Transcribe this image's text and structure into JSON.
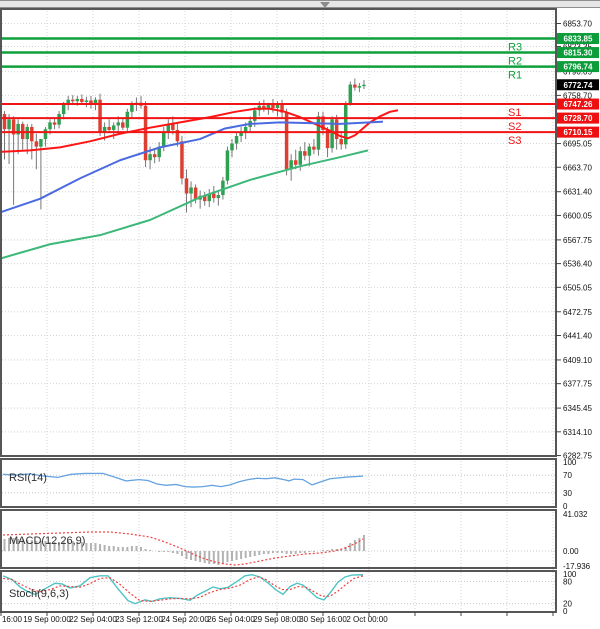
{
  "chart_data": {
    "type": "candlestick",
    "timeframe_hint": "4h bars",
    "price_axis_ticks": [
      "6853.70",
      "6823.35",
      "6790.05",
      "6758.70",
      "6695.05",
      "6663.70",
      "6631.40",
      "6600.05",
      "6567.75",
      "6536.40",
      "6505.05",
      "6472.75",
      "6441.40",
      "6409.10",
      "6377.75",
      "6345.45",
      "6314.10",
      "6282.75"
    ],
    "time_axis_labels": [
      "16:00",
      "19 Sep 00:00",
      "22 Sep 04:00",
      "23 Sep 12:00",
      "24 Sep 20:00",
      "26 Sep 04:00",
      "29 Sep 08:00",
      "30 Sep 16:00",
      "2 Oct 00:00"
    ],
    "levels": {
      "resistance": [
        {
          "name": "R3",
          "price": "6833.85"
        },
        {
          "name": "R2",
          "price": "6815.30"
        },
        {
          "name": "R1",
          "price": "6796.74"
        }
      ],
      "support": [
        {
          "name": "S1",
          "price": "6747.26"
        },
        {
          "name": "S2",
          "price": "6728.70"
        },
        {
          "name": "S3",
          "price": "6710.15"
        }
      ],
      "current_price": "6772.74"
    },
    "candles_ohlc": [
      [
        6734,
        6738,
        6674,
        6714
      ],
      [
        6714,
        6734,
        6668,
        6727
      ],
      [
        6727,
        6731,
        6614,
        6707
      ],
      [
        6707,
        6727,
        6681,
        6721
      ],
      [
        6721,
        6724,
        6687,
        6701
      ],
      [
        6701,
        6721,
        6681,
        6717
      ],
      [
        6717,
        6721,
        6674,
        6698
      ],
      [
        6698,
        6708,
        6661,
        6691
      ],
      [
        6691,
        6701,
        6608,
        6701
      ],
      [
        6701,
        6717,
        6691,
        6714
      ],
      [
        6714,
        6727,
        6707,
        6723
      ],
      [
        6723,
        6730,
        6714,
        6720
      ],
      [
        6720,
        6738,
        6715,
        6734
      ],
      [
        6734,
        6750,
        6727,
        6746
      ],
      [
        6746,
        6758,
        6739,
        6753
      ],
      [
        6753,
        6759,
        6746,
        6751
      ],
      [
        6751,
        6758,
        6745,
        6754
      ],
      [
        6754,
        6760,
        6747,
        6750
      ],
      [
        6750,
        6757,
        6743,
        6752
      ],
      [
        6752,
        6758,
        6741,
        6747
      ],
      [
        6747,
        6756,
        6739,
        6753
      ],
      [
        6753,
        6761,
        6705,
        6709
      ],
      [
        6709,
        6723,
        6699,
        6717
      ],
      [
        6717,
        6727,
        6709,
        6713
      ],
      [
        6713,
        6723,
        6701,
        6719
      ],
      [
        6719,
        6731,
        6711,
        6723
      ],
      [
        6723,
        6729,
        6713,
        6716
      ],
      [
        6716,
        6741,
        6711,
        6737
      ],
      [
        6737,
        6751,
        6729,
        6746
      ],
      [
        6746,
        6756,
        6738,
        6749
      ],
      [
        6749,
        6758,
        6741,
        6745
      ],
      [
        6745,
        6751,
        6664,
        6673
      ],
      [
        6673,
        6691,
        6661,
        6681
      ],
      [
        6681,
        6689,
        6669,
        6677
      ],
      [
        6677,
        6697,
        6671,
        6691
      ],
      [
        6691,
        6717,
        6685,
        6711
      ],
      [
        6711,
        6727,
        6701,
        6721
      ],
      [
        6721,
        6731,
        6707,
        6713
      ],
      [
        6713,
        6723,
        6691,
        6698
      ],
      [
        6698,
        6705,
        6641,
        6649
      ],
      [
        6649,
        6661,
        6604,
        6629
      ],
      [
        6629,
        6645,
        6611,
        6637
      ],
      [
        6637,
        6641,
        6616,
        6621
      ],
      [
        6621,
        6633,
        6609,
        6626
      ],
      [
        6626,
        6631,
        6613,
        6619
      ],
      [
        6619,
        6635,
        6611,
        6629
      ],
      [
        6629,
        6639,
        6617,
        6623
      ],
      [
        6623,
        6633,
        6613,
        6627
      ],
      [
        6627,
        6651,
        6621,
        6646
      ],
      [
        6646,
        6691,
        6641,
        6686
      ],
      [
        6686,
        6701,
        6677,
        6695
      ],
      [
        6695,
        6711,
        6687,
        6705
      ],
      [
        6705,
        6717,
        6697,
        6711
      ],
      [
        6711,
        6723,
        6701,
        6717
      ],
      [
        6717,
        6731,
        6709,
        6725
      ],
      [
        6725,
        6743,
        6717,
        6739
      ],
      [
        6739,
        6751,
        6731,
        6745
      ],
      [
        6745,
        6753,
        6737,
        6741
      ],
      [
        6741,
        6749,
        6733,
        6746
      ],
      [
        6746,
        6754,
        6736,
        6742
      ],
      [
        6742,
        6751,
        6731,
        6747
      ],
      [
        6747,
        6753,
        6729,
        6736
      ],
      [
        6736,
        6741,
        6653,
        6661
      ],
      [
        6661,
        6681,
        6646,
        6673
      ],
      [
        6673,
        6687,
        6661,
        6667
      ],
      [
        6667,
        6691,
        6659,
        6685
      ],
      [
        6685,
        6697,
        6673,
        6679
      ],
      [
        6679,
        6695,
        6665,
        6691
      ],
      [
        6691,
        6701,
        6681,
        6687
      ],
      [
        6687,
        6737,
        6679,
        6731
      ],
      [
        6731,
        6737,
        6706,
        6713
      ],
      [
        6713,
        6717,
        6677,
        6689
      ],
      [
        6689,
        6731,
        6683,
        6727
      ],
      [
        6727,
        6733,
        6687,
        6701
      ],
      [
        6701,
        6711,
        6687,
        6694
      ],
      [
        6694,
        6751,
        6688,
        6747
      ],
      [
        6747,
        6777,
        6745,
        6773
      ],
      [
        6773,
        6781,
        6765,
        6769
      ],
      [
        6769,
        6775,
        6763,
        6771
      ],
      [
        6771,
        6779,
        6767,
        6772.7
      ]
    ],
    "moving_averages": [
      {
        "name": "ma-fast-red",
        "points": [
          [
            0,
            6684
          ],
          [
            30,
            6686
          ],
          [
            60,
            6690
          ],
          [
            90,
            6698
          ],
          [
            120,
            6708
          ],
          [
            150,
            6716
          ],
          [
            180,
            6723
          ],
          [
            210,
            6730
          ],
          [
            235,
            6737
          ],
          [
            255,
            6741
          ],
          [
            270,
            6741
          ],
          [
            285,
            6737
          ],
          [
            300,
            6730
          ],
          [
            315,
            6721
          ],
          [
            330,
            6712
          ],
          [
            340,
            6705
          ],
          [
            348,
            6702
          ],
          [
            355,
            6706
          ],
          [
            362,
            6714
          ],
          [
            370,
            6723
          ],
          [
            380,
            6731
          ],
          [
            390,
            6737
          ],
          [
            398,
            6739
          ]
        ]
      },
      {
        "name": "ma-mid-blue",
        "points": [
          [
            0,
            6604
          ],
          [
            40,
            6622
          ],
          [
            80,
            6649
          ],
          [
            120,
            6673
          ],
          [
            160,
            6690
          ],
          [
            200,
            6701
          ],
          [
            225,
            6715
          ],
          [
            250,
            6721
          ],
          [
            280,
            6723
          ],
          [
            310,
            6722
          ],
          [
            340,
            6721
          ],
          [
            383,
            6724
          ]
        ]
      },
      {
        "name": "ma-slow-green",
        "points": [
          [
            0,
            6543
          ],
          [
            50,
            6562
          ],
          [
            100,
            6574
          ],
          [
            150,
            6594
          ],
          [
            200,
            6624
          ],
          [
            250,
            6647
          ],
          [
            300,
            6665
          ],
          [
            340,
            6677
          ],
          [
            368,
            6686
          ]
        ]
      }
    ],
    "rsi": {
      "label": "RSI(14)",
      "axis_ticks": [
        "100",
        "70",
        "30",
        "0"
      ],
      "series": [
        [
          3,
          72
        ],
        [
          16,
          70
        ],
        [
          30,
          73
        ],
        [
          44,
          68
        ],
        [
          58,
          65
        ],
        [
          71,
          72
        ],
        [
          85,
          74
        ],
        [
          103,
          74
        ],
        [
          117,
          64
        ],
        [
          126,
          57
        ],
        [
          139,
          60
        ],
        [
          148,
          58
        ],
        [
          157,
          50
        ],
        [
          166,
          47
        ],
        [
          176,
          49
        ],
        [
          185,
          44
        ],
        [
          194,
          43
        ],
        [
          203,
          44
        ],
        [
          212,
          47
        ],
        [
          221,
          44
        ],
        [
          230,
          48
        ],
        [
          239,
          55
        ],
        [
          248,
          60
        ],
        [
          257,
          63
        ],
        [
          266,
          62
        ],
        [
          275,
          64
        ],
        [
          284,
          60
        ],
        [
          289,
          57
        ],
        [
          294,
          61
        ],
        [
          303,
          60
        ],
        [
          312,
          48
        ],
        [
          321,
          55
        ],
        [
          330,
          62
        ],
        [
          339,
          64
        ],
        [
          348,
          66
        ],
        [
          357,
          67
        ],
        [
          363,
          68
        ]
      ]
    },
    "macd": {
      "label": "MACD(12,26,9)",
      "axis_ticks": [
        "41.032",
        "0.00",
        "-17.936"
      ],
      "histogram": [
        12,
        13,
        13,
        12,
        12,
        11,
        11,
        10,
        10,
        10,
        9,
        9,
        9,
        10,
        10,
        10,
        9,
        9,
        8,
        8,
        8,
        7,
        6,
        5,
        5,
        4,
        4,
        4,
        5,
        5,
        4,
        2,
        1,
        0,
        -1,
        -1,
        -1,
        -2,
        -3,
        -5,
        -8,
        -9,
        -10,
        -11,
        -12,
        -13,
        -13,
        -14,
        -13,
        -11,
        -10,
        -9,
        -8,
        -7,
        -6,
        -5,
        -4,
        -3,
        -3,
        -2,
        -2,
        -2,
        -3,
        -3,
        -3,
        -2,
        -2,
        -1,
        -1,
        0,
        1,
        1,
        2,
        2,
        2,
        4,
        8,
        11,
        13,
        16
      ],
      "signal": [
        [
          3,
          16
        ],
        [
          30,
          17
        ],
        [
          60,
          18
        ],
        [
          90,
          19
        ],
        [
          110,
          19
        ],
        [
          130,
          17
        ],
        [
          150,
          14
        ],
        [
          165,
          9
        ],
        [
          180,
          3
        ],
        [
          195,
          -4
        ],
        [
          205,
          -8
        ],
        [
          215,
          -11
        ],
        [
          225,
          -13
        ],
        [
          235,
          -14
        ],
        [
          245,
          -13
        ],
        [
          260,
          -10
        ],
        [
          275,
          -7
        ],
        [
          290,
          -5
        ],
        [
          305,
          -3
        ],
        [
          320,
          -2
        ],
        [
          335,
          0
        ],
        [
          345,
          3
        ],
        [
          352,
          6
        ],
        [
          358,
          9
        ],
        [
          363,
          12
        ]
      ]
    },
    "stoch": {
      "label": "Stoch(9,6,3)",
      "axis_ticks": [
        "100",
        "80",
        "20",
        "0"
      ],
      "k": [
        [
          3,
          95
        ],
        [
          12,
          85
        ],
        [
          20,
          65
        ],
        [
          28,
          52
        ],
        [
          35,
          45
        ],
        [
          45,
          60
        ],
        [
          55,
          75
        ],
        [
          62,
          73
        ],
        [
          70,
          62
        ],
        [
          80,
          68
        ],
        [
          90,
          90
        ],
        [
          100,
          95
        ],
        [
          108,
          95
        ],
        [
          118,
          60
        ],
        [
          128,
          28
        ],
        [
          135,
          20
        ],
        [
          145,
          30
        ],
        [
          152,
          26
        ],
        [
          160,
          33
        ],
        [
          170,
          36
        ],
        [
          180,
          34
        ],
        [
          190,
          29
        ],
        [
          198,
          44
        ],
        [
          207,
          56
        ],
        [
          213,
          65
        ],
        [
          220,
          60
        ],
        [
          228,
          64
        ],
        [
          237,
          80
        ],
        [
          245,
          95
        ],
        [
          252,
          98
        ],
        [
          260,
          92
        ],
        [
          268,
          76
        ],
        [
          276,
          57
        ],
        [
          283,
          45
        ],
        [
          290,
          66
        ],
        [
          297,
          75
        ],
        [
          303,
          70
        ],
        [
          310,
          53
        ],
        [
          317,
          36
        ],
        [
          324,
          30
        ],
        [
          331,
          52
        ],
        [
          338,
          78
        ],
        [
          345,
          92
        ],
        [
          352,
          97
        ],
        [
          363,
          98
        ]
      ],
      "d": [
        [
          3,
          88
        ],
        [
          12,
          85
        ],
        [
          20,
          73
        ],
        [
          30,
          60
        ],
        [
          40,
          52
        ],
        [
          50,
          58
        ],
        [
          60,
          68
        ],
        [
          70,
          66
        ],
        [
          80,
          64
        ],
        [
          90,
          74
        ],
        [
          100,
          88
        ],
        [
          110,
          90
        ],
        [
          120,
          72
        ],
        [
          130,
          48
        ],
        [
          140,
          28
        ],
        [
          150,
          26
        ],
        [
          160,
          29
        ],
        [
          170,
          33
        ],
        [
          180,
          34
        ],
        [
          190,
          33
        ],
        [
          200,
          37
        ],
        [
          210,
          50
        ],
        [
          220,
          58
        ],
        [
          230,
          62
        ],
        [
          240,
          70
        ],
        [
          250,
          85
        ],
        [
          258,
          92
        ],
        [
          266,
          85
        ],
        [
          274,
          70
        ],
        [
          282,
          58
        ],
        [
          290,
          58
        ],
        [
          298,
          66
        ],
        [
          306,
          64
        ],
        [
          314,
          52
        ],
        [
          322,
          40
        ],
        [
          330,
          40
        ],
        [
          338,
          54
        ],
        [
          346,
          72
        ],
        [
          354,
          88
        ],
        [
          363,
          95
        ]
      ]
    }
  },
  "colors": {
    "bull": "#2fa052",
    "bear": "#dd4033",
    "wick": "#787878",
    "resistance_line": "#0fa03c",
    "support_line": "#f01414",
    "resistance_tag_bg": "#0d9c3a",
    "support_tag_bg": "#ee1010",
    "current_tag_bg": "#000000",
    "ma_fast": "#ff1515",
    "ma_mid": "#4a6ae0",
    "ma_slow": "#3cb878",
    "rsi_line": "#66a3e0",
    "macd_hist": "#b2b2b2",
    "macd_signal": "#f04040",
    "stoch_k": "#4fc4c4",
    "stoch_d": "#f04040",
    "grid": "#d4d4d4",
    "panel_border": "#565656"
  }
}
